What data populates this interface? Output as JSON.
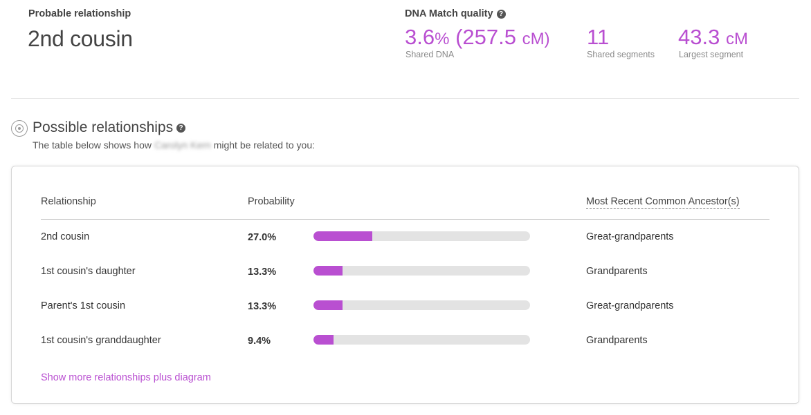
{
  "summary": {
    "probable_label": "Probable relationship",
    "probable_value": "2nd cousin",
    "quality_label": "DNA Match quality",
    "help_glyph": "?",
    "shared_percent": "3.6",
    "percent_sign": "%",
    "shared_cm_open": "(257.5",
    "shared_cm_unit": "cM)",
    "shared_label": "Shared DNA",
    "segments_value": "11",
    "segments_label": "Shared segments",
    "largest_value": "43.3",
    "largest_unit": "cM",
    "largest_label": "Largest segment"
  },
  "possible": {
    "title": "Possible relationships",
    "intro_prefix": "The table below shows how",
    "match_name": "Carolyn Kern",
    "intro_suffix": "might be related to you:"
  },
  "table": {
    "headers": {
      "relationship": "Relationship",
      "probability": "Probability",
      "mrca": "Most Recent Common Ancestor(s)"
    },
    "rows": [
      {
        "relationship": "2nd cousin",
        "probability": "27.0%",
        "fraction": 0.27,
        "mrca": "Great-grandparents"
      },
      {
        "relationship": "1st cousin's daughter",
        "probability": "13.3%",
        "fraction": 0.133,
        "mrca": "Grandparents"
      },
      {
        "relationship": "Parent's 1st cousin",
        "probability": "13.3%",
        "fraction": 0.133,
        "mrca": "Great-grandparents"
      },
      {
        "relationship": "1st cousin's granddaughter",
        "probability": "9.4%",
        "fraction": 0.094,
        "mrca": "Grandparents"
      }
    ],
    "show_more": "Show more relationships plus diagram"
  },
  "colors": {
    "accent": "#b94fd1",
    "track": "#e3e3e3"
  },
  "icons": {
    "help": "help-icon",
    "section": "target-circle-icon"
  }
}
